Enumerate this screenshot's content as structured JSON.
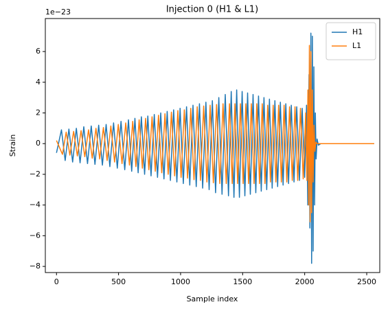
{
  "chart_data": {
    "type": "line",
    "title": "Injection 0 (H1 & L1)",
    "xlabel": "Sample index",
    "ylabel": "Strain",
    "y_offset_label": "1e−23",
    "xlim": [
      -90,
      2605
    ],
    "xticks": [
      0,
      500,
      1000,
      1500,
      2000,
      2500
    ],
    "ylim": [
      -8.4,
      8.15
    ],
    "yticks": [
      {
        "value": -8,
        "label": "−8"
      },
      {
        "value": -6,
        "label": "−6"
      },
      {
        "value": -4,
        "label": "−4"
      },
      {
        "value": -2,
        "label": "−2"
      },
      0,
      2,
      4,
      6
    ],
    "grid": false,
    "legend": "upper right",
    "series": [
      {
        "name": "H1",
        "color": "#1f77b4",
        "x": [
          0,
          40,
          70,
          100,
          130,
          160,
          190,
          220,
          250,
          280,
          310,
          340,
          370,
          400,
          430,
          460,
          490,
          520,
          550,
          580,
          606,
          632,
          658,
          684,
          710,
          736,
          762,
          788,
          814,
          840,
          866,
          892,
          918,
          944,
          970,
          996,
          1022,
          1048,
          1074,
          1100,
          1126,
          1152,
          1178,
          1204,
          1230,
          1256,
          1282,
          1308,
          1334,
          1360,
          1386,
          1408,
          1430,
          1452,
          1474,
          1496,
          1518,
          1540,
          1562,
          1584,
          1606,
          1628,
          1650,
          1672,
          1694,
          1716,
          1738,
          1760,
          1782,
          1804,
          1826,
          1848,
          1870,
          1892,
          1914,
          1936,
          1958,
          1980,
          2000,
          2015,
          2025,
          2035,
          2042,
          2050,
          2056,
          2062,
          2068,
          2074,
          2080,
          2086,
          2092,
          2100,
          2110,
          2130,
          2560
        ],
        "values": [
          -0.6,
          0.9,
          -1.1,
          0.95,
          -1.2,
          1.0,
          -1.25,
          1.1,
          -1.3,
          1.15,
          -1.35,
          1.2,
          -1.4,
          1.25,
          -1.5,
          1.35,
          -1.6,
          1.45,
          -1.7,
          1.55,
          -1.8,
          1.65,
          -1.9,
          1.75,
          -2.0,
          1.8,
          -2.1,
          1.9,
          -2.2,
          2.0,
          -2.3,
          2.1,
          -2.4,
          2.2,
          -2.5,
          2.3,
          -2.6,
          2.4,
          -2.7,
          2.5,
          -2.8,
          2.6,
          -2.9,
          2.7,
          -3.0,
          2.8,
          -3.2,
          3.0,
          -3.3,
          3.2,
          -3.4,
          3.4,
          -3.5,
          3.5,
          -3.5,
          3.4,
          -3.4,
          3.3,
          -3.3,
          3.2,
          -3.2,
          3.1,
          -3.1,
          3.0,
          -3.0,
          2.9,
          -2.9,
          2.8,
          -2.8,
          2.7,
          -2.7,
          2.6,
          -2.6,
          2.5,
          -2.5,
          2.4,
          -2.4,
          2.3,
          -2.2,
          2.5,
          -4.0,
          4.5,
          -5.5,
          7.2,
          -7.8,
          7.0,
          -7.0,
          5.0,
          -4.0,
          2.0,
          -1.0,
          0.3,
          -0.1,
          0,
          0
        ]
      },
      {
        "name": "L1",
        "color": "#ff7f0e",
        "x": [
          0,
          48,
          78,
          108,
          138,
          168,
          198,
          228,
          258,
          288,
          318,
          348,
          378,
          408,
          438,
          468,
          498,
          528,
          558,
          588,
          614,
          640,
          666,
          692,
          718,
          744,
          770,
          796,
          822,
          848,
          874,
          900,
          926,
          952,
          978,
          1004,
          1030,
          1056,
          1082,
          1108,
          1134,
          1160,
          1186,
          1212,
          1238,
          1264,
          1290,
          1316,
          1342,
          1368,
          1394,
          1416,
          1438,
          1460,
          1482,
          1504,
          1526,
          1548,
          1570,
          1592,
          1614,
          1636,
          1658,
          1680,
          1702,
          1724,
          1746,
          1768,
          1790,
          1812,
          1834,
          1856,
          1878,
          1900,
          1922,
          1944,
          1966,
          1988,
          2008,
          2018,
          2026,
          2032,
          2038,
          2044,
          2050,
          2056,
          2062,
          2068,
          2075,
          2082,
          2090,
          2100,
          2560
        ],
        "values": [
          0.2,
          -0.7,
          0.75,
          -0.75,
          0.8,
          -0.8,
          0.85,
          -0.85,
          0.9,
          -0.95,
          1.0,
          -1.0,
          1.05,
          -1.1,
          1.15,
          -1.2,
          1.25,
          -1.3,
          1.35,
          -1.4,
          1.45,
          -1.5,
          1.55,
          -1.6,
          1.65,
          -1.7,
          1.75,
          -1.8,
          1.85,
          -1.9,
          1.95,
          -2.0,
          2.05,
          -2.1,
          2.15,
          -2.2,
          2.2,
          -2.25,
          2.3,
          -2.35,
          2.4,
          -2.4,
          2.45,
          -2.5,
          2.5,
          -2.55,
          2.55,
          -2.6,
          2.6,
          -2.6,
          2.6,
          -2.6,
          2.6,
          -2.6,
          2.6,
          -2.6,
          2.6,
          -2.6,
          2.6,
          -2.6,
          2.6,
          -2.6,
          2.6,
          -2.6,
          2.5,
          -2.5,
          2.5,
          -2.5,
          2.5,
          -2.5,
          2.5,
          -2.5,
          2.4,
          -2.4,
          2.4,
          -2.4,
          2.3,
          -2.3,
          2.0,
          -2.4,
          3.5,
          -4.0,
          6.4,
          -5.1,
          6.0,
          -4.5,
          3.5,
          -2.5,
          1.2,
          -0.5,
          0.1,
          0,
          0
        ]
      }
    ]
  }
}
